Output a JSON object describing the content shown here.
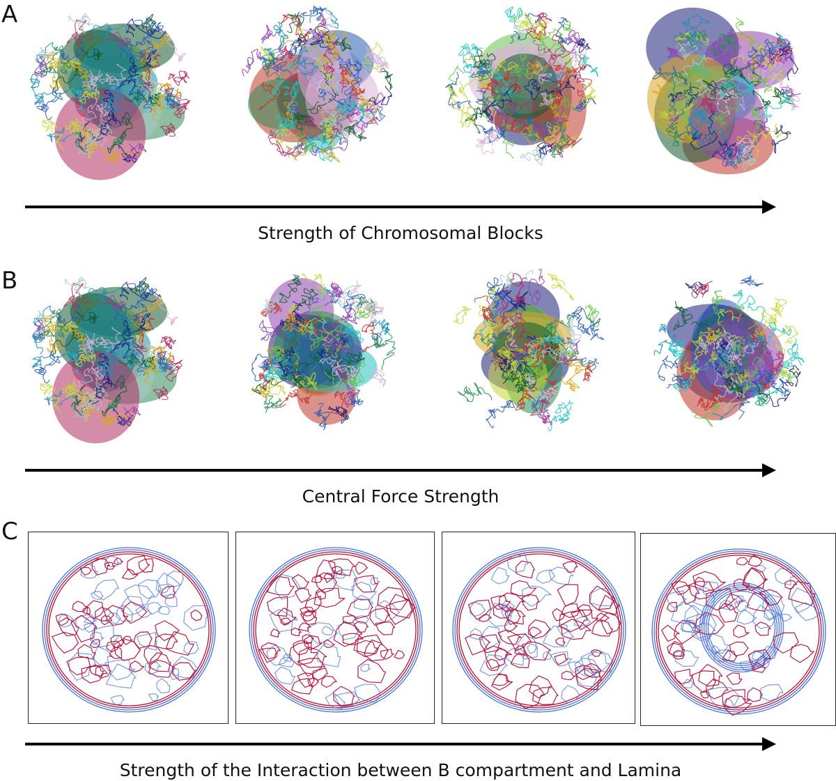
{
  "panels": {
    "a": {
      "letter": "A",
      "caption": "Strength of Chromosomal Blocks"
    },
    "b": {
      "letter": "B",
      "caption": "Central Force Strength"
    },
    "c": {
      "letter": "C",
      "caption": "Strength of the Interaction between B compartment and Lamina"
    }
  },
  "colors": {
    "chromosome_palette": [
      "#1b1f7a",
      "#2a5db0",
      "#1d8fb5",
      "#27c2c2",
      "#2e8b57",
      "#145a32",
      "#6cc04a",
      "#c6d63a",
      "#d9a520",
      "#c0392b",
      "#b03060",
      "#8e44ad",
      "#a9c8c8",
      "#d8b4d8"
    ],
    "contour_red": "#b0103a",
    "contour_blue": "#4a6fd6",
    "frame": "#222222"
  }
}
